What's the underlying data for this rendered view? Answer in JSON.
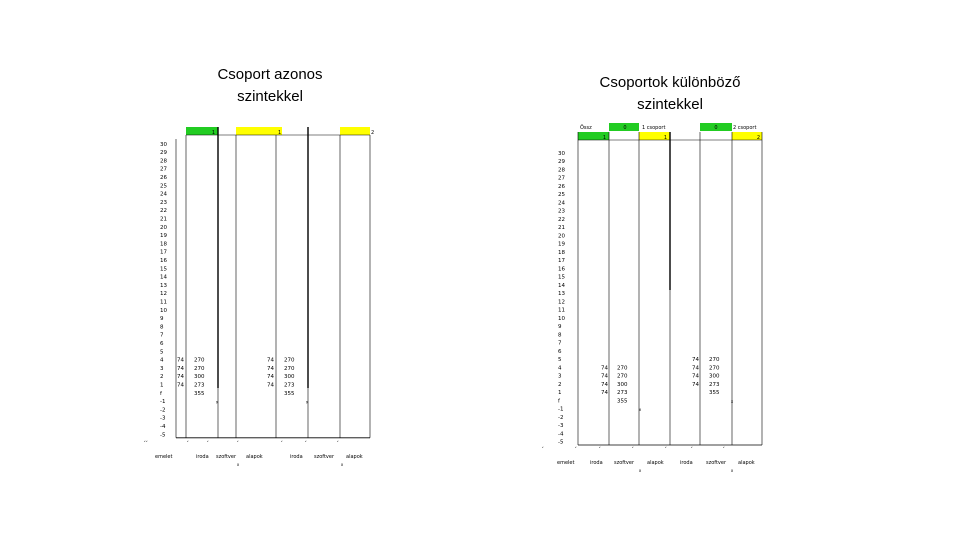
{
  "left": {
    "title_line1": "Csoport azonos",
    "title_line2": "szintekkel",
    "header": {
      "a": "1",
      "b": "1",
      "c": "2"
    },
    "levels": [
      "30",
      "29",
      "28",
      "27",
      "26",
      "25",
      "24",
      "23",
      "22",
      "21",
      "20",
      "19",
      "18",
      "17",
      "16",
      "15",
      "14",
      "13",
      "12",
      "11",
      "10",
      "9",
      "8",
      "7",
      "6",
      "5",
      "4",
      "3",
      "2",
      "1",
      "f",
      "-1",
      "-2",
      "-3",
      "-4",
      "-5"
    ],
    "group1": {
      "left_values": [
        "74",
        "74",
        "74",
        "74"
      ],
      "right_values": [
        "270",
        "270",
        "300",
        "273",
        "355"
      ],
      "marker": "x"
    },
    "group2": {
      "left_values": [
        "74",
        "74",
        "74",
        "74"
      ],
      "right_values": [
        "270",
        "270",
        "300",
        "273",
        "355"
      ],
      "marker": "x"
    },
    "footer": [
      "emelet",
      "iroda",
      "szoftver",
      "alapok",
      "iroda",
      "szoftver",
      "alapok"
    ],
    "footer_markers": [
      "x",
      "x"
    ]
  },
  "right": {
    "title_line1": "Csoportok különböző",
    "title_line2": "szintekkel",
    "header_top": {
      "label": "Össz",
      "g1_num": "0",
      "g1_name": "1 csoport",
      "g2_num": "0",
      "g2_name": "2 csoport"
    },
    "header": {
      "a": "1",
      "b": "1",
      "c": "2"
    },
    "levels": [
      "30",
      "29",
      "28",
      "27",
      "26",
      "25",
      "24",
      "23",
      "22",
      "21",
      "20",
      "19",
      "18",
      "17",
      "16",
      "15",
      "14",
      "13",
      "12",
      "11",
      "10",
      "9",
      "8",
      "7",
      "6",
      "5",
      "4",
      "3",
      "2",
      "1",
      "f",
      "-1",
      "-2",
      "-3",
      "-4",
      "-5"
    ],
    "group1": {
      "left_values": [
        "74",
        "74",
        "74",
        "74"
      ],
      "right_values": [
        "270",
        "270",
        "300",
        "273",
        "355"
      ],
      "marker": "x"
    },
    "group2": {
      "left_values": [
        "74",
        "74",
        "74",
        "74"
      ],
      "right_values": [
        "270",
        "270",
        "300",
        "273",
        "355"
      ],
      "marker": "x"
    },
    "footer": [
      "emelet",
      "iroda",
      "szoftver",
      "alapok",
      "iroda",
      "szoftver",
      "alapok"
    ],
    "footer_markers": [
      "x",
      "x"
    ]
  },
  "colors": {
    "green": "#22cc22",
    "yellow": "#ffff00",
    "grid": "#000000"
  }
}
